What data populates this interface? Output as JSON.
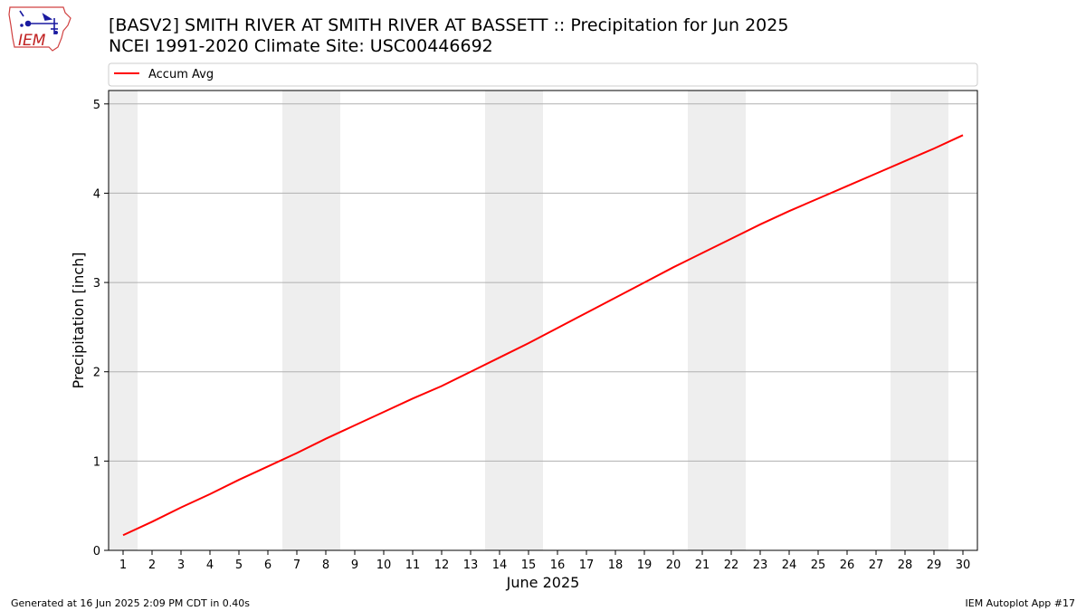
{
  "header": {
    "title_line1": "[BASV2] SMITH RIVER  AT SMITH RIVER AT BASSETT :: Precipitation for Jun 2025",
    "title_line2": "NCEI 1991-2020 Climate Site: USC00446692",
    "logo_text": "IEM"
  },
  "footer": {
    "left": "Generated at 16 Jun 2025 2:09 PM CDT in 0.40s",
    "right": "IEM Autoplot App #17"
  },
  "chart_data": {
    "type": "line",
    "xlabel": "June 2025",
    "ylabel": "Precipitation [inch]",
    "xlim": [
      0.5,
      30.5
    ],
    "ylim": [
      0,
      5.15
    ],
    "yticks": [
      0,
      1,
      2,
      3,
      4,
      5
    ],
    "grid": "horizontal",
    "legend_position": "top",
    "weekend_shading": [
      [
        0.5,
        1.5
      ],
      [
        6.5,
        8.5
      ],
      [
        13.5,
        15.5
      ],
      [
        20.5,
        22.5
      ],
      [
        27.5,
        29.5
      ]
    ],
    "shade_color": "#eeeeee",
    "x": [
      1,
      2,
      3,
      4,
      5,
      6,
      7,
      8,
      9,
      10,
      11,
      12,
      13,
      14,
      15,
      16,
      17,
      18,
      19,
      20,
      21,
      22,
      23,
      24,
      25,
      26,
      27,
      28,
      29,
      30
    ],
    "series": [
      {
        "name": "Accum Avg",
        "color": "#ff0000",
        "values": [
          0.17,
          0.32,
          0.48,
          0.63,
          0.79,
          0.94,
          1.09,
          1.25,
          1.4,
          1.55,
          1.7,
          1.84,
          2.0,
          2.16,
          2.32,
          2.49,
          2.66,
          2.83,
          3.0,
          3.17,
          3.33,
          3.49,
          3.65,
          3.8,
          3.94,
          4.08,
          4.22,
          4.36,
          4.5,
          4.65
        ]
      }
    ]
  }
}
